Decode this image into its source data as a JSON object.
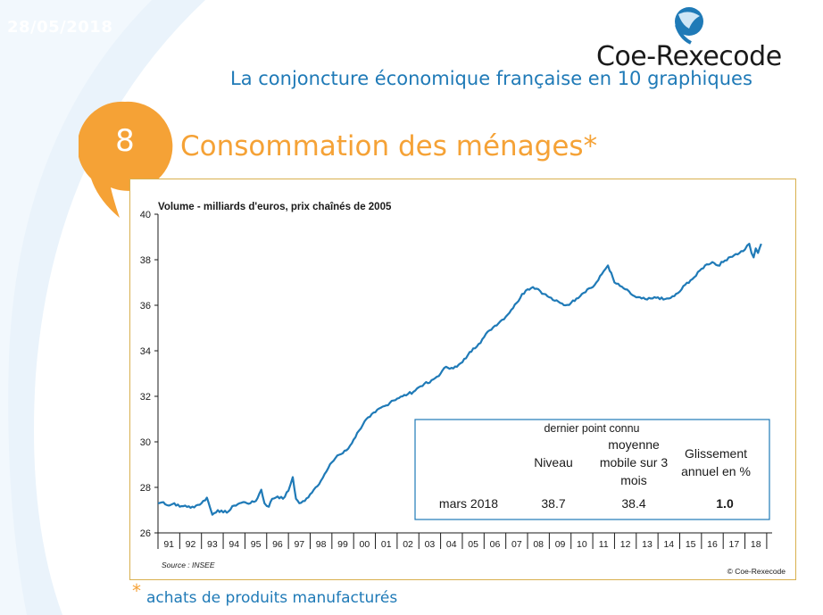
{
  "header": {
    "date": "28/05/2018",
    "logo_text": "Coe-Rexecode",
    "subtitle": "La conjoncture économique française en 10 graphiques"
  },
  "section": {
    "number": "8",
    "title": "Consommation des ménages*"
  },
  "footnote": {
    "star": "*",
    "text": "achats de produits manufacturés"
  },
  "colors": {
    "accent_orange": "#f5a236",
    "brand_blue": "#1f7ab7",
    "frame_gold": "#d9b04e"
  },
  "chart_data": {
    "type": "line",
    "ylabel": "Volume - milliards d'euros, prix chaînés de 2005",
    "source": "Source : INSEE",
    "copyright": "© Coe-Rexecode",
    "ylim": [
      26,
      40
    ],
    "yticks": [
      26,
      28,
      30,
      32,
      34,
      36,
      38,
      40
    ],
    "xlim": [
      1990.5,
      2018.75
    ],
    "xtick_labels": [
      "91",
      "92",
      "93",
      "94",
      "95",
      "96",
      "97",
      "98",
      "99",
      "00",
      "01",
      "02",
      "03",
      "04",
      "05",
      "06",
      "07",
      "08",
      "09",
      "10",
      "11",
      "12",
      "13",
      "14",
      "15",
      "16",
      "17",
      "18"
    ],
    "series": [
      {
        "color": "#1f7ab7",
        "points": [
          [
            1990.5,
            27.3
          ],
          [
            1990.75,
            27.35
          ],
          [
            1991.0,
            27.2
          ],
          [
            1991.25,
            27.3
          ],
          [
            1991.5,
            27.15
          ],
          [
            1991.75,
            27.2
          ],
          [
            1992.0,
            27.1
          ],
          [
            1992.25,
            27.2
          ],
          [
            1992.5,
            27.3
          ],
          [
            1992.75,
            27.55
          ],
          [
            1992.9,
            27.1
          ],
          [
            1993.0,
            26.8
          ],
          [
            1993.25,
            27.0
          ],
          [
            1993.5,
            26.9
          ],
          [
            1993.75,
            26.95
          ],
          [
            1994.0,
            27.2
          ],
          [
            1994.25,
            27.3
          ],
          [
            1994.5,
            27.35
          ],
          [
            1994.75,
            27.3
          ],
          [
            1995.0,
            27.4
          ],
          [
            1995.25,
            27.9
          ],
          [
            1995.4,
            27.3
          ],
          [
            1995.6,
            27.15
          ],
          [
            1995.75,
            27.5
          ],
          [
            1996.0,
            27.6
          ],
          [
            1996.25,
            27.5
          ],
          [
            1996.5,
            27.85
          ],
          [
            1996.7,
            28.45
          ],
          [
            1996.85,
            27.5
          ],
          [
            1997.0,
            27.3
          ],
          [
            1997.25,
            27.4
          ],
          [
            1997.5,
            27.7
          ],
          [
            1997.75,
            28.0
          ],
          [
            1998.0,
            28.3
          ],
          [
            1998.25,
            28.7
          ],
          [
            1998.5,
            29.1
          ],
          [
            1998.75,
            29.4
          ],
          [
            1999.0,
            29.5
          ],
          [
            1999.25,
            29.7
          ],
          [
            1999.5,
            30.1
          ],
          [
            1999.75,
            30.5
          ],
          [
            2000.0,
            30.9
          ],
          [
            2000.25,
            31.1
          ],
          [
            2000.5,
            31.3
          ],
          [
            2000.75,
            31.5
          ],
          [
            2001.0,
            31.6
          ],
          [
            2001.25,
            31.8
          ],
          [
            2001.5,
            31.9
          ],
          [
            2001.75,
            32.0
          ],
          [
            2002.0,
            32.1
          ],
          [
            2002.25,
            32.2
          ],
          [
            2002.5,
            32.4
          ],
          [
            2002.75,
            32.55
          ],
          [
            2003.0,
            32.6
          ],
          [
            2003.25,
            32.8
          ],
          [
            2003.5,
            33.0
          ],
          [
            2003.75,
            33.3
          ],
          [
            2004.0,
            33.25
          ],
          [
            2004.25,
            33.3
          ],
          [
            2004.5,
            33.5
          ],
          [
            2004.75,
            33.8
          ],
          [
            2005.0,
            34.1
          ],
          [
            2005.25,
            34.3
          ],
          [
            2005.5,
            34.6
          ],
          [
            2005.75,
            34.9
          ],
          [
            2006.0,
            35.1
          ],
          [
            2006.25,
            35.3
          ],
          [
            2006.5,
            35.5
          ],
          [
            2006.75,
            35.8
          ],
          [
            2007.0,
            36.1
          ],
          [
            2007.25,
            36.5
          ],
          [
            2007.5,
            36.7
          ],
          [
            2007.75,
            36.8
          ],
          [
            2008.0,
            36.7
          ],
          [
            2008.25,
            36.5
          ],
          [
            2008.5,
            36.35
          ],
          [
            2008.75,
            36.2
          ],
          [
            2009.0,
            36.1
          ],
          [
            2009.25,
            36.0
          ],
          [
            2009.5,
            36.1
          ],
          [
            2009.75,
            36.3
          ],
          [
            2010.0,
            36.5
          ],
          [
            2010.25,
            36.7
          ],
          [
            2010.5,
            36.8
          ],
          [
            2010.75,
            37.1
          ],
          [
            2011.0,
            37.5
          ],
          [
            2011.2,
            37.75
          ],
          [
            2011.5,
            37.0
          ],
          [
            2011.75,
            36.85
          ],
          [
            2012.0,
            36.7
          ],
          [
            2012.25,
            36.5
          ],
          [
            2012.5,
            36.35
          ],
          [
            2012.75,
            36.3
          ],
          [
            2013.0,
            36.25
          ],
          [
            2013.25,
            36.3
          ],
          [
            2013.5,
            36.35
          ],
          [
            2013.75,
            36.25
          ],
          [
            2014.0,
            36.3
          ],
          [
            2014.25,
            36.4
          ],
          [
            2014.5,
            36.6
          ],
          [
            2014.75,
            36.9
          ],
          [
            2015.0,
            37.1
          ],
          [
            2015.25,
            37.3
          ],
          [
            2015.5,
            37.6
          ],
          [
            2015.75,
            37.8
          ],
          [
            2016.0,
            37.9
          ],
          [
            2016.25,
            37.75
          ],
          [
            2016.5,
            37.9
          ],
          [
            2016.75,
            38.1
          ],
          [
            2017.0,
            38.2
          ],
          [
            2017.25,
            38.3
          ],
          [
            2017.5,
            38.45
          ],
          [
            2017.7,
            38.7
          ],
          [
            2017.8,
            38.3
          ],
          [
            2017.9,
            38.1
          ],
          [
            2018.0,
            38.5
          ],
          [
            2018.1,
            38.3
          ],
          [
            2018.25,
            38.7
          ]
        ]
      }
    ],
    "table": {
      "header_top": "dernier point connu",
      "columns": [
        "Niveau",
        "moyenne mobile sur 3 mois",
        "Glissement annuel en %"
      ],
      "rows": [
        {
          "label": "mars 2018",
          "values": [
            "38.7",
            "38.4",
            "1.0"
          ]
        }
      ]
    }
  }
}
